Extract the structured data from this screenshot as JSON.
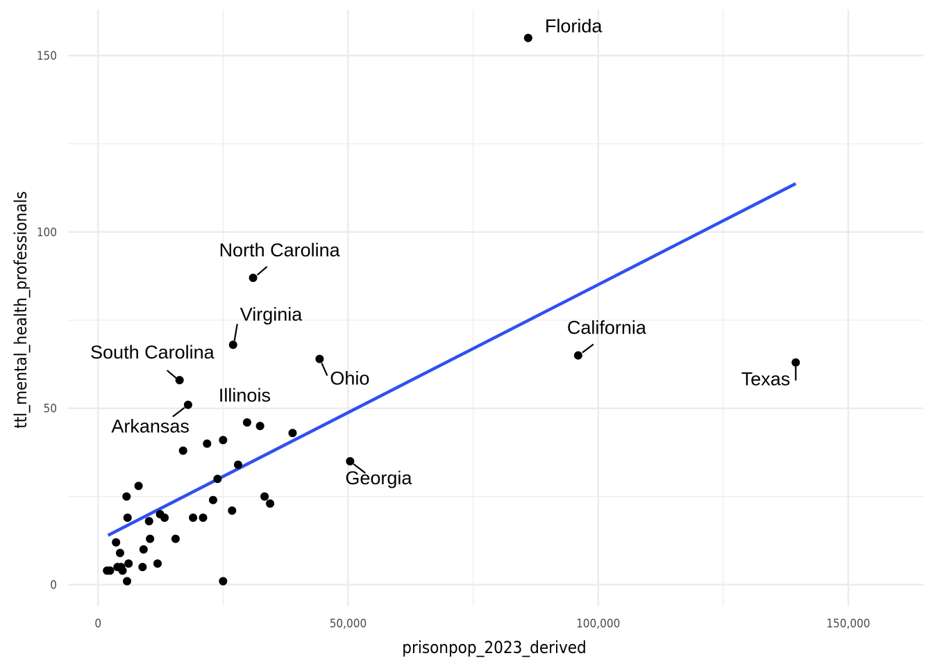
{
  "chart_data": {
    "type": "scatter",
    "title": "",
    "xlabel": "prisonpop_2023_derived",
    "ylabel": "ttl_mental_health_professionals",
    "xlim": [
      -6000,
      165000
    ],
    "ylim": [
      -6,
      163
    ],
    "x_ticks": [
      {
        "value": 0,
        "label": "0"
      },
      {
        "value": 50000,
        "label": "50,000"
      },
      {
        "value": 100000,
        "label": "100,000"
      },
      {
        "value": 150000,
        "label": "150,000"
      }
    ],
    "y_ticks": [
      {
        "value": 0,
        "label": "0"
      },
      {
        "value": 50,
        "label": "50"
      },
      {
        "value": 100,
        "label": "100"
      },
      {
        "value": 150,
        "label": "150"
      }
    ],
    "grid": true,
    "colors": {
      "points": "#000000",
      "trend": "#3050f0",
      "grid": "#ebebeb"
    },
    "trend_line": {
      "x": [
        2000,
        139500
      ],
      "y": [
        14,
        113.7
      ]
    },
    "points": [
      {
        "x": 86000,
        "y": 155,
        "label": "Florida"
      },
      {
        "x": 139500,
        "y": 63,
        "label": "Texas"
      },
      {
        "x": 96000,
        "y": 65,
        "label": "California"
      },
      {
        "x": 31000,
        "y": 87,
        "label": "North Carolina"
      },
      {
        "x": 27000,
        "y": 68,
        "label": "Virginia"
      },
      {
        "x": 44300,
        "y": 64,
        "label": "Ohio"
      },
      {
        "x": 16300,
        "y": 58,
        "label": "South Carolina"
      },
      {
        "x": 18000,
        "y": 51,
        "label": "Arkansas"
      },
      {
        "x": 50400,
        "y": 35,
        "label": "Georgia"
      },
      {
        "x": 29800,
        "y": 46,
        "label": "Illinois"
      },
      {
        "x": 32400,
        "y": 45
      },
      {
        "x": 38900,
        "y": 43
      },
      {
        "x": 25000,
        "y": 41
      },
      {
        "x": 21800,
        "y": 40
      },
      {
        "x": 17000,
        "y": 38
      },
      {
        "x": 28000,
        "y": 34
      },
      {
        "x": 23900,
        "y": 30
      },
      {
        "x": 8100,
        "y": 28
      },
      {
        "x": 5700,
        "y": 25
      },
      {
        "x": 33300,
        "y": 25
      },
      {
        "x": 23000,
        "y": 24
      },
      {
        "x": 34400,
        "y": 23
      },
      {
        "x": 26800,
        "y": 21
      },
      {
        "x": 12400,
        "y": 20
      },
      {
        "x": 13300,
        "y": 19
      },
      {
        "x": 5900,
        "y": 19
      },
      {
        "x": 19000,
        "y": 19
      },
      {
        "x": 21000,
        "y": 19
      },
      {
        "x": 10200,
        "y": 18
      },
      {
        "x": 10400,
        "y": 13
      },
      {
        "x": 15500,
        "y": 13
      },
      {
        "x": 3600,
        "y": 12
      },
      {
        "x": 9100,
        "y": 10
      },
      {
        "x": 4400,
        "y": 9
      },
      {
        "x": 6100,
        "y": 6
      },
      {
        "x": 11900,
        "y": 6
      },
      {
        "x": 8900,
        "y": 5
      },
      {
        "x": 3900,
        "y": 5
      },
      {
        "x": 4600,
        "y": 5
      },
      {
        "x": 4900,
        "y": 4
      },
      {
        "x": 1800,
        "y": 4
      },
      {
        "x": 2400,
        "y": 4
      },
      {
        "x": 5800,
        "y": 1
      },
      {
        "x": 25000,
        "y": 1
      }
    ]
  }
}
